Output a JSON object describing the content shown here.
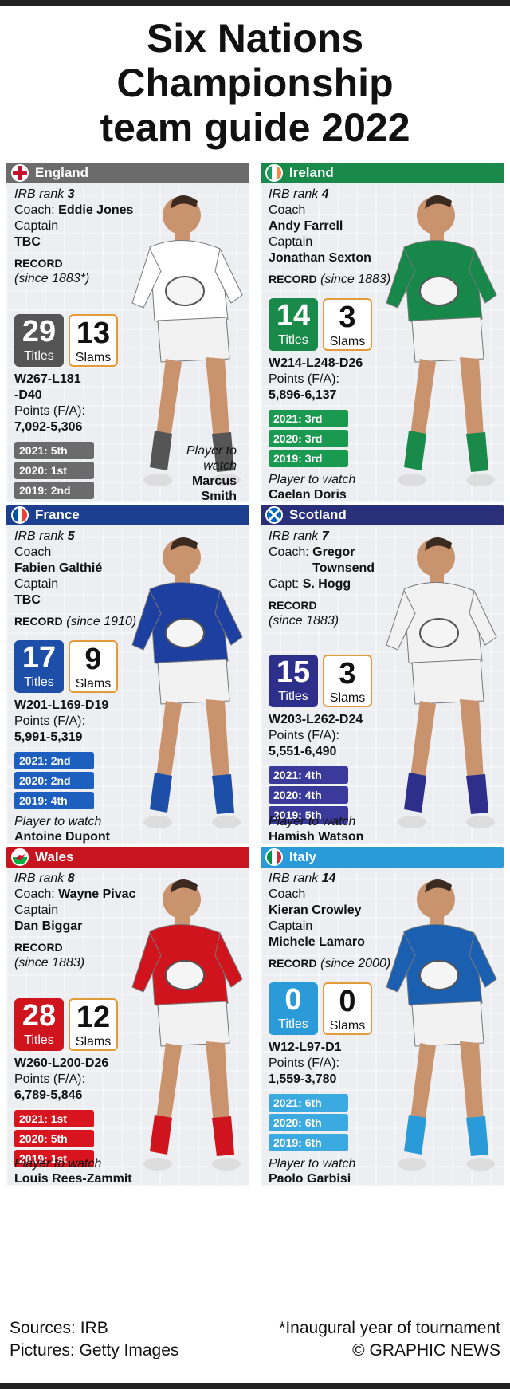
{
  "title": [
    "Six Nations",
    "Championship",
    "team guide 2022"
  ],
  "teams": [
    {
      "name": "England",
      "colors": {
        "bar": "#6b6b6b",
        "titles": "#555555",
        "hist": "#6b6b6b"
      },
      "rank_label": "IRB rank",
      "rank": "3",
      "coach_label": "Coach:",
      "coach": "Eddie Jones",
      "captain_label": "Captain",
      "captain": "TBC",
      "record_label": "RECORD",
      "record_since": "(since 1883*)",
      "titles": "29",
      "titles_label": "Titles",
      "slams": "13",
      "slams_label": "Slams",
      "wld": [
        "W267-L181",
        "-D40"
      ],
      "points_label": "Points (F/A):",
      "points": "7,092-5,306",
      "history": [
        "2021: 5th",
        "2020: 1st",
        "2019: 2nd"
      ],
      "ptw_label": "Player to watch",
      "player": [
        "Marcus",
        "Smith"
      ],
      "shirt": "#ffffff"
    },
    {
      "name": "Ireland",
      "colors": {
        "bar": "#1a8a4a",
        "titles": "#1a8a4a",
        "hist": "#1a9a50"
      },
      "rank_label": "IRB rank",
      "rank": "4",
      "coach_label": "Coach",
      "coach": "Andy Farrell",
      "captain_label": "Captain",
      "captain": "Jonathan Sexton",
      "record_label": "RECORD",
      "record_since": "(since 1883)",
      "titles": "14",
      "titles_label": "Titles",
      "slams": "3",
      "slams_label": "Slams",
      "wld": [
        "W214-L248-D26"
      ],
      "points_label": "Points (F/A):",
      "points": "5,896-6,137",
      "history": [
        "2021: 3rd",
        "2020: 3rd",
        "2019: 3rd"
      ],
      "ptw_label": "Player to watch",
      "player": [
        "Caelan Doris"
      ],
      "shirt": "#17874a"
    },
    {
      "name": "France",
      "colors": {
        "bar": "#1d3f8f",
        "titles": "#1d4fa8",
        "hist": "#1d5fbf"
      },
      "rank_label": "IRB rank",
      "rank": "5",
      "coach_label": "Coach",
      "coach": "Fabien Galthié",
      "captain_label": "Captain",
      "captain": "TBC",
      "record_label": "RECORD",
      "record_since": "(since 1910)",
      "titles": "17",
      "titles_label": "Titles",
      "slams": "9",
      "slams_label": "Slams",
      "wld": [
        "W201-L169-D19"
      ],
      "points_label": "Points (F/A):",
      "points": "5,991-5,319",
      "history": [
        "2021: 2nd",
        "2020: 2nd",
        "2019: 4th"
      ],
      "ptw_label": "Player to watch",
      "player": [
        "Antoine Dupont"
      ],
      "shirt": "#1d3f9f"
    },
    {
      "name": "Scotland",
      "colors": {
        "bar": "#2a2f7a",
        "titles": "#2e2f8a",
        "hist": "#3a3a9a"
      },
      "rank_label": "IRB rank",
      "rank": "7",
      "coach_label": "Coach:",
      "coach": "Gregor Townsend",
      "captain_label": "Capt:",
      "captain": "S. Hogg",
      "record_label": "RECORD",
      "record_since": "(since 1883)",
      "titles": "15",
      "titles_label": "Titles",
      "slams": "3",
      "slams_label": "Slams",
      "wld": [
        "W203-L262-D24"
      ],
      "points_label": "Points (F/A):",
      "points": "5,551-6,490",
      "history": [
        "2021: 4th",
        "2020: 4th",
        "2019: 5th"
      ],
      "ptw_label": "Player to watch",
      "player": [
        "Hamish Watson"
      ],
      "shirt": "#f2f2f2"
    },
    {
      "name": "Wales",
      "colors": {
        "bar": "#c8141e",
        "titles": "#d0141e",
        "hist": "#d8141e"
      },
      "rank_label": "IRB rank",
      "rank": "8",
      "coach_label": "Coach:",
      "coach": "Wayne Pivac",
      "captain_label": "Captain",
      "captain": "Dan Biggar",
      "record_label": "RECORD",
      "record_since": "(since 1883)",
      "titles": "28",
      "titles_label": "Titles",
      "slams": "12",
      "slams_label": "Slams",
      "wld": [
        "W260-L200-D26"
      ],
      "points_label": "Points (F/A):",
      "points": "6,789-5,846",
      "history": [
        "2021: 1st",
        "2020: 5th",
        "2019: 1st"
      ],
      "ptw_label": "Player to watch",
      "player": [
        "Louis Rees-Zammit"
      ],
      "shirt": "#d0141e"
    },
    {
      "name": "Italy",
      "colors": {
        "bar": "#2a9ad8",
        "titles": "#2a9ad8",
        "hist": "#3aaae0"
      },
      "rank_label": "IRB rank",
      "rank": "14",
      "coach_label": "Coach",
      "coach": "Kieran Crowley",
      "captain_label": "Captain",
      "captain": "Michele Lamaro",
      "record_label": "RECORD",
      "record_since": "(since 2000)",
      "titles": "0",
      "titles_label": "Titles",
      "slams": "0",
      "slams_label": "Slams",
      "wld": [
        "W12-L97-D1"
      ],
      "points_label": "Points (F/A):",
      "points": "1,559-3,780",
      "history": [
        "2021: 6th",
        "2020: 6th",
        "2019: 6th"
      ],
      "ptw_label": "Player to watch",
      "player": [
        "Paolo Garbisi"
      ],
      "shirt": "#1a5fb0"
    }
  ],
  "footer": {
    "sources": "Sources: IRB",
    "pictures": "Pictures: Getty Images",
    "note": "*Inaugural year of tournament",
    "credit": "© GRAPHIC NEWS"
  }
}
